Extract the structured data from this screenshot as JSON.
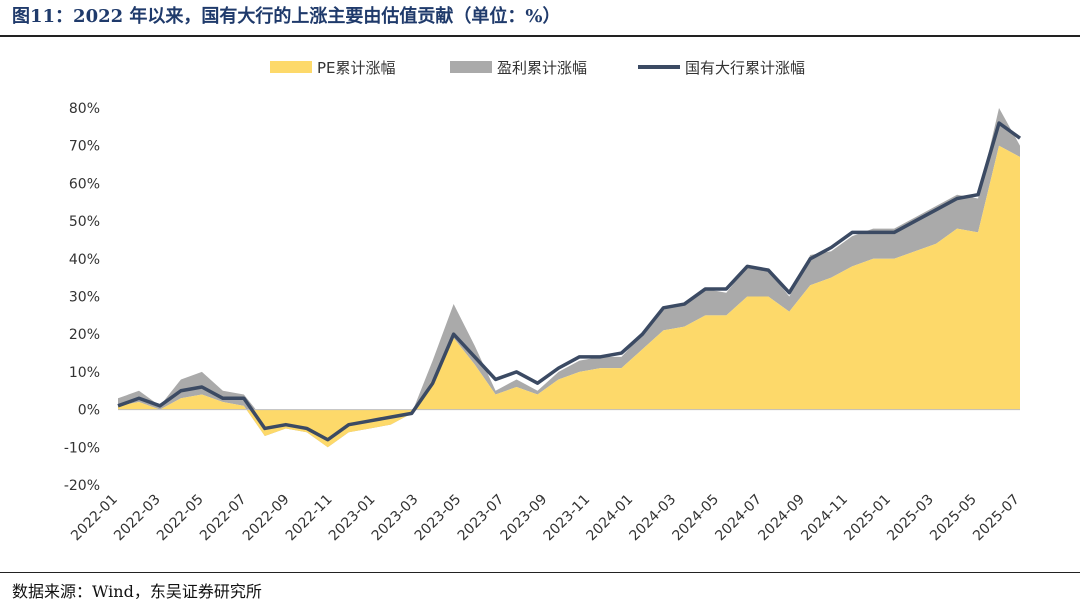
{
  "title": "图11：2022 年以来，国有大行的上涨主要由估值贡献（单位：%）",
  "source": "数据来源：Wind，东吴证券研究所",
  "colors": {
    "pe": "#fdd96a",
    "earnings": "#aaaaaa",
    "bank": "#3b4a63"
  },
  "chart_data": {
    "type": "area",
    "ylim": [
      -20,
      80
    ],
    "yticks": [
      "80%",
      "70%",
      "60%",
      "50%",
      "40%",
      "30%",
      "20%",
      "10%",
      "0%",
      "-10%",
      "-20%"
    ],
    "xticks": [
      "2022-01",
      "2022-03",
      "2022-05",
      "2022-07",
      "2022-09",
      "2022-11",
      "2023-01",
      "2023-03",
      "2023-05",
      "2023-07",
      "2023-09",
      "2023-11",
      "2024-01",
      "2024-03",
      "2024-05",
      "2024-07",
      "2024-09",
      "2024-11",
      "2025-01",
      "2025-03",
      "2025-05",
      "2025-07"
    ],
    "legend_position": "top",
    "x": [
      "2022-01",
      "2022-02",
      "2022-03",
      "2022-04",
      "2022-05",
      "2022-06",
      "2022-07",
      "2022-08",
      "2022-09",
      "2022-10",
      "2022-11",
      "2022-12",
      "2023-01",
      "2023-02",
      "2023-03",
      "2023-04",
      "2023-05",
      "2023-06",
      "2023-07",
      "2023-08",
      "2023-09",
      "2023-10",
      "2023-11",
      "2023-12",
      "2024-01",
      "2024-02",
      "2024-03",
      "2024-04",
      "2024-05",
      "2024-06",
      "2024-07",
      "2024-08",
      "2024-09",
      "2024-10",
      "2024-11",
      "2024-12",
      "2025-01",
      "2025-02",
      "2025-03",
      "2025-04",
      "2025-05",
      "2025-06",
      "2025-07",
      "2025-08"
    ],
    "series": [
      {
        "name": "PE累计涨幅",
        "values": [
          1,
          2,
          0,
          3,
          4,
          2,
          1,
          -7,
          -5,
          -6,
          -10,
          -6,
          -5,
          -4,
          -1,
          8,
          19,
          12,
          4,
          6,
          4,
          8,
          10,
          11,
          11,
          16,
          21,
          22,
          25,
          25,
          30,
          30,
          26,
          33,
          35,
          38,
          40,
          40,
          42,
          44,
          48,
          47,
          70,
          67
        ]
      },
      {
        "name": "盈利累计涨幅",
        "values": [
          2,
          3,
          1,
          5,
          6,
          3,
          3,
          -4,
          -3,
          -4,
          -7,
          -3,
          -2,
          -1,
          0,
          5,
          9,
          5,
          1,
          2,
          1,
          2,
          3,
          3,
          3,
          4,
          6,
          6,
          7,
          6,
          8,
          7,
          4,
          8,
          7,
          8,
          8,
          8,
          9,
          10,
          9,
          9,
          10,
          3
        ]
      },
      {
        "name": "国有大行累计涨幅",
        "values": [
          1,
          3,
          1,
          5,
          6,
          3,
          3,
          -5,
          -4,
          -5,
          -8,
          -4,
          -3,
          -2,
          -1,
          7,
          20,
          14,
          8,
          10,
          7,
          11,
          14,
          14,
          15,
          20,
          27,
          28,
          32,
          32,
          38,
          37,
          31,
          40,
          43,
          47,
          47,
          47,
          50,
          53,
          56,
          57,
          76,
          72
        ]
      }
    ]
  }
}
